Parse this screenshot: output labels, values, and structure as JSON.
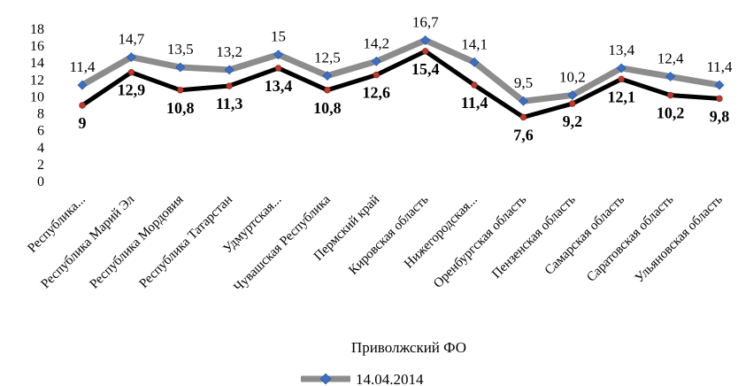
{
  "chart_data": {
    "type": "line",
    "xlabel": "Приволжский ФО",
    "ylim": [
      0,
      18
    ],
    "yticks": [
      0,
      2,
      4,
      6,
      8,
      10,
      12,
      14,
      16,
      18
    ],
    "categories": [
      "Республика...",
      "Республика Марий Эл",
      "Республика Мордовия",
      "Республика Татарстан",
      "Удмуртская...",
      "Чувашская Республика",
      "Пермский край",
      "Кировская область",
      "Нижегородская...",
      "Оренбургская область",
      "Пензенская область",
      "Самарская область",
      "Саратовская область",
      "Ульяновская область"
    ],
    "series": [
      {
        "name": "14.04.2014",
        "color": "#8c8c8c",
        "marker": "#3a6fc4",
        "values": [
          11.4,
          14.7,
          13.5,
          13.2,
          15,
          12.5,
          14.2,
          16.7,
          14.1,
          9.5,
          10.2,
          13.4,
          12.4,
          11.4
        ],
        "labels": [
          "11,4",
          "14,7",
          "13,5",
          "13,2",
          "15",
          "12,5",
          "14,2",
          "16,7",
          "14,1",
          "9,5",
          "10,2",
          "13,4",
          "12,4",
          "11,4"
        ]
      },
      {
        "name": "",
        "color": "#000000",
        "marker": "#c0392b",
        "values": [
          9,
          12.9,
          10.8,
          11.3,
          13.4,
          10.8,
          12.6,
          15.4,
          11.4,
          7.6,
          9.2,
          12.1,
          10.2,
          9.8
        ],
        "labels": [
          "9",
          "12,9",
          "10,8",
          "11,3",
          "13,4",
          "10,8",
          "12,6",
          "15,4",
          "11,4",
          "7,6",
          "9,2",
          "12,1",
          "10,2",
          "9,8"
        ]
      }
    ],
    "legend_position": "bottom"
  }
}
